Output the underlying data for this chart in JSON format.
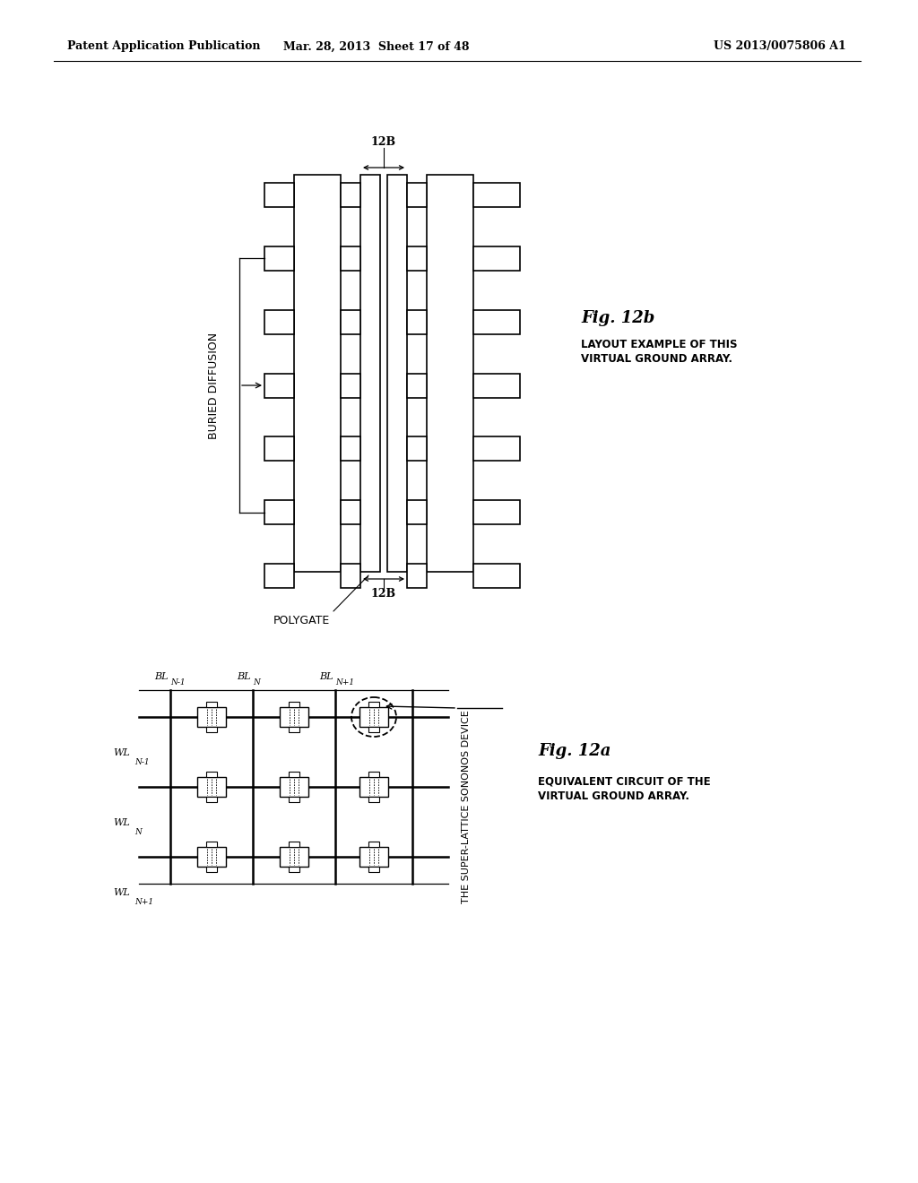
{
  "page_width": 10.24,
  "page_height": 13.2,
  "bg_color": "#ffffff",
  "header_left": "Patent Application Publication",
  "header_mid": "Mar. 28, 2013  Sheet 17 of 48",
  "header_right": "US 2013/0075806 A1",
  "fig12b_label": "Fig. 12b",
  "fig12b_cap1": "LAYOUT EXAMPLE OF THIS",
  "fig12b_cap2": "VIRTUAL GROUND ARRAY.",
  "fig12a_label": "Fig. 12a",
  "fig12a_cap1": "EQUIVALENT CIRCUIT OF THE",
  "fig12a_cap2": "VIRTUAL GROUND ARRAY.",
  "polygate": "POLYGATE",
  "buried_diffusion": "BURIED DIFFUSION",
  "label_12B": "12B",
  "sononos": "THE SUPER-LATTICE SONONOS DEVICE"
}
